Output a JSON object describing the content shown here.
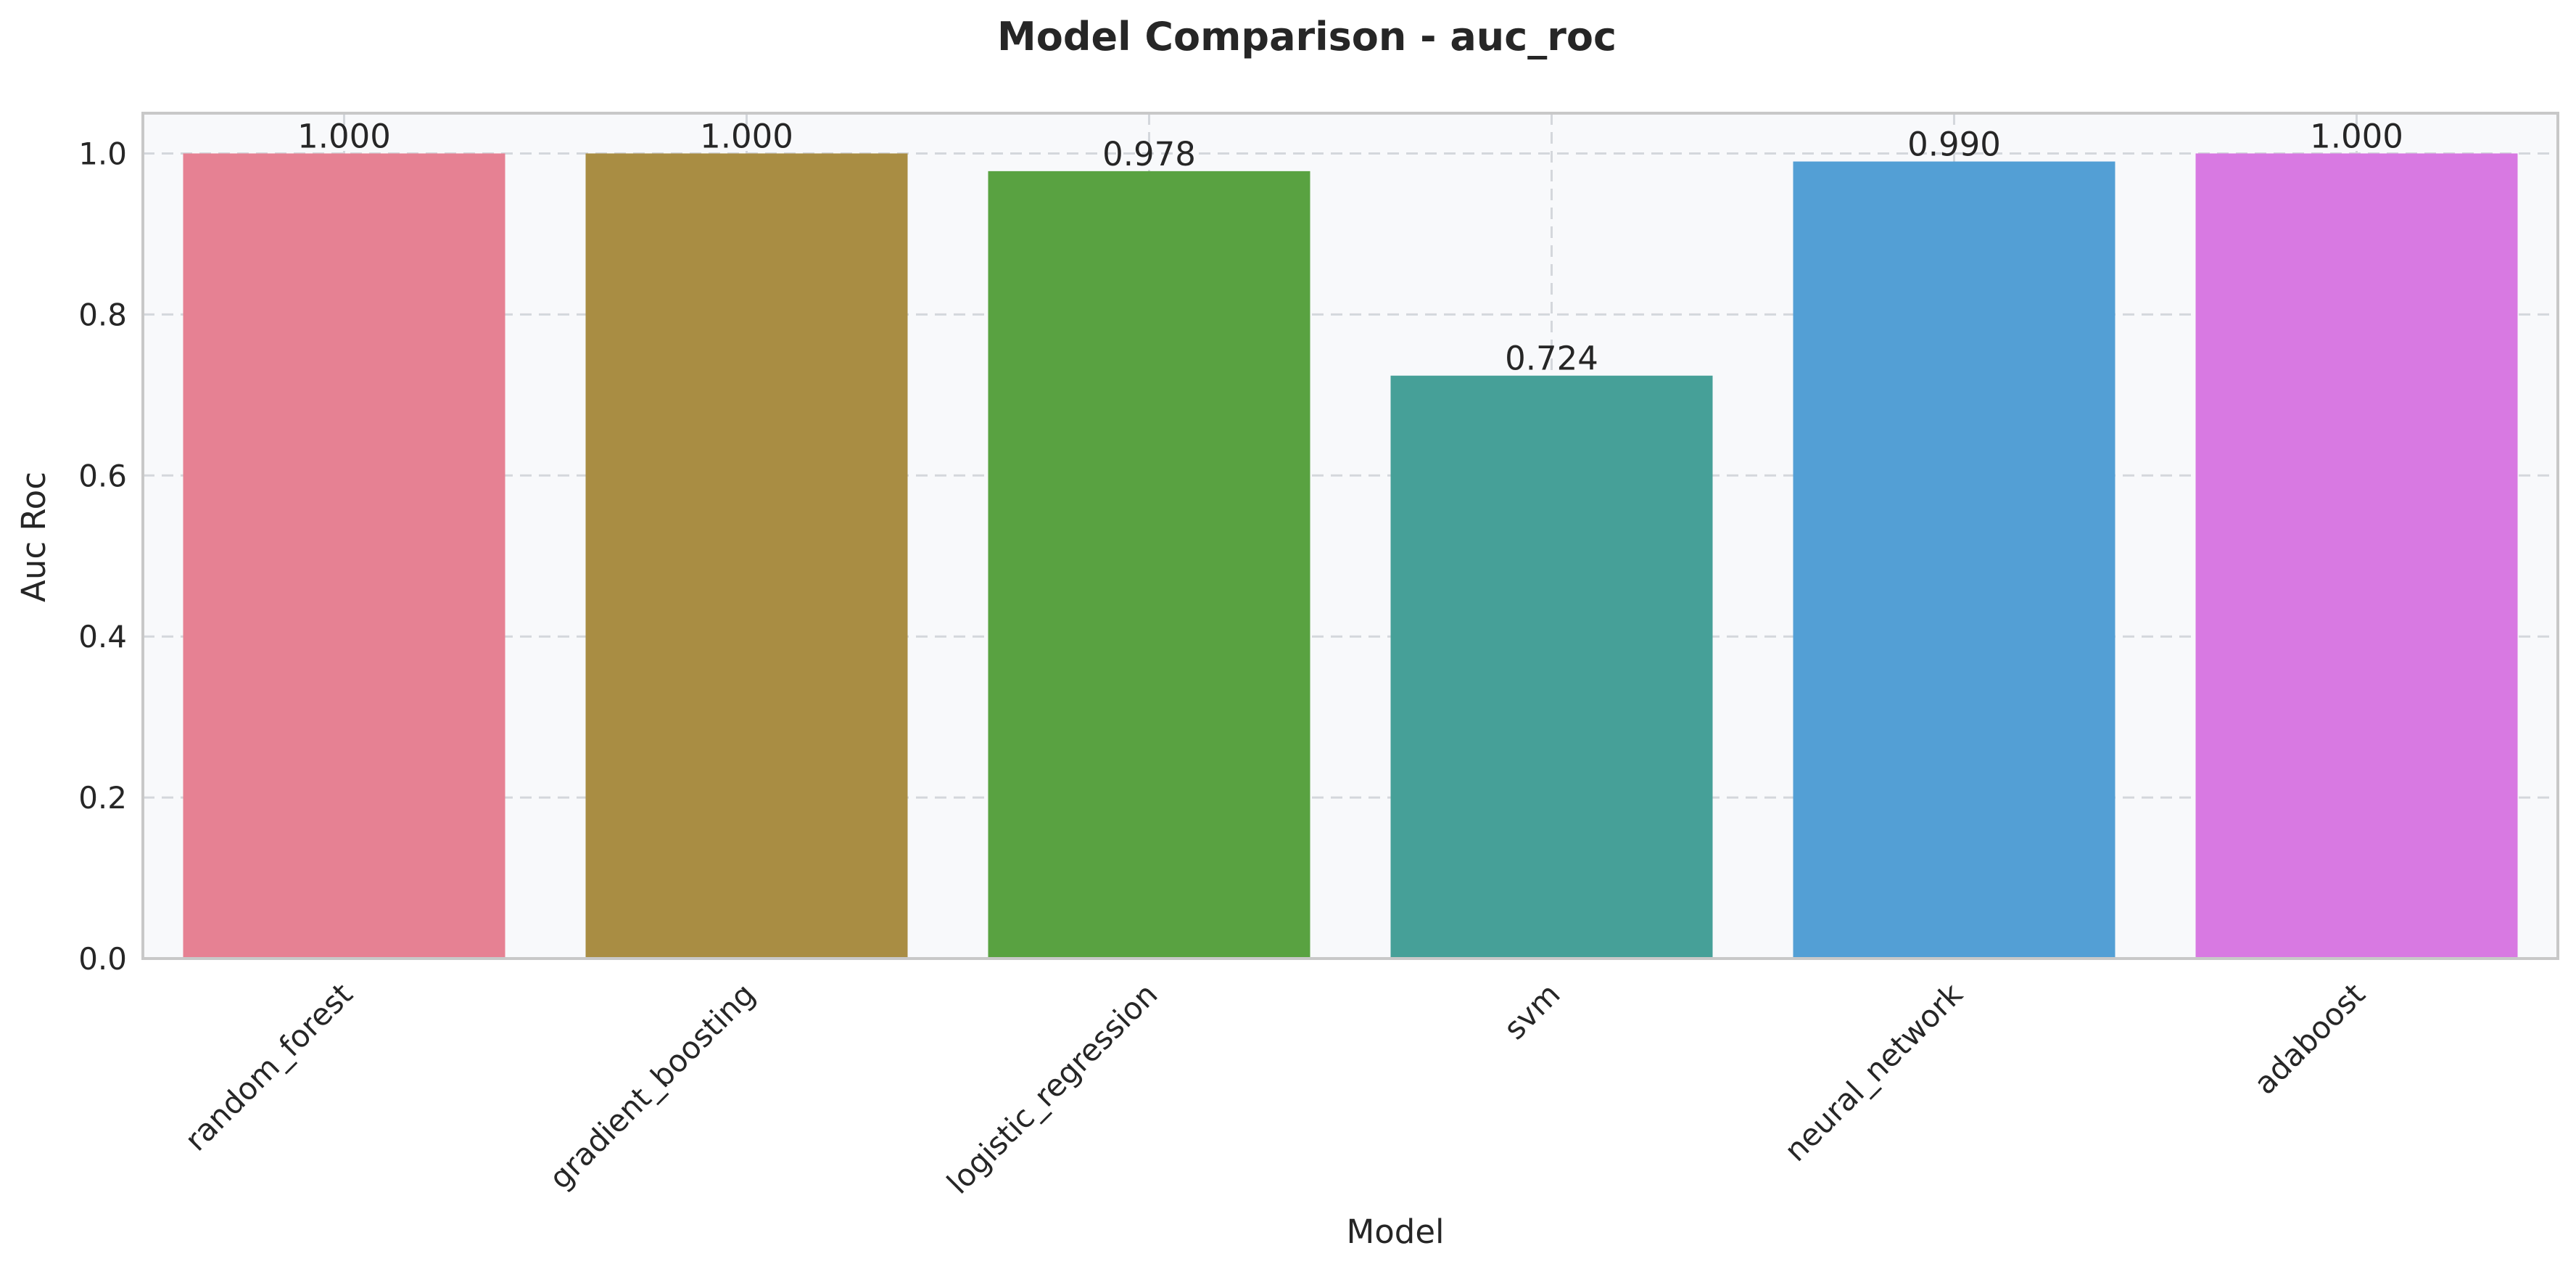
{
  "chart_data": {
    "type": "bar",
    "title": "Model Comparison - auc_roc",
    "xlabel": "Model",
    "ylabel": "Auc Roc",
    "categories": [
      "random_forest",
      "gradient_boosting",
      "logistic_regression",
      "svm",
      "neural_network",
      "adaboost"
    ],
    "values": [
      1.0,
      1.0,
      0.978,
      0.724,
      0.99,
      1.0
    ],
    "data_labels": [
      "1.000",
      "1.000",
      "0.978",
      "0.724",
      "0.990",
      "1.000"
    ],
    "colors": [
      "#e68193",
      "#a98d43",
      "#59a241",
      "#46a098",
      "#539fd5",
      "#d879e2"
    ],
    "ylim": [
      0,
      1.05
    ],
    "yticks": [
      0.0,
      0.2,
      0.4,
      0.6,
      0.8,
      1.0
    ],
    "ytick_labels": [
      "0.0",
      "0.2",
      "0.4",
      "0.6",
      "0.8",
      "1.0"
    ],
    "grid": true,
    "grid_style": "dashed",
    "plot_background": "#f8f9fb",
    "legend": "none"
  }
}
